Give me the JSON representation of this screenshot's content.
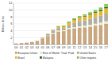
{
  "chart_data": {
    "type": "bar",
    "stacked": true,
    "categories": [
      "00",
      "01",
      "02",
      "03",
      "04",
      "05",
      "06",
      "07",
      "08",
      "09",
      "10",
      "11",
      "12",
      "13",
      "14",
      "15",
      "16",
      "17"
    ],
    "series": [
      {
        "name": "European Union",
        "color": "#c9a882",
        "values": [
          0.3,
          0.4,
          0.5,
          0.7,
          1.0,
          1.8,
          2.5,
          3.0,
          3.8,
          3.9,
          4.5,
          4.7,
          4.9,
          5.0,
          5.2,
          5.5,
          5.7,
          6.0
        ]
      },
      {
        "name": "Rest of World / Trad. Prod.",
        "color": "#eeeac0",
        "values": [
          0.0,
          0.0,
          0.0,
          0.0,
          0.0,
          0.05,
          0.1,
          0.25,
          0.25,
          0.25,
          0.3,
          0.35,
          0.4,
          0.45,
          0.5,
          0.55,
          0.65,
          0.75
        ]
      },
      {
        "name": "United States",
        "color": "#b0b0a8",
        "values": [
          0.0,
          0.0,
          0.05,
          0.05,
          0.1,
          0.15,
          0.45,
          0.85,
          0.75,
          0.5,
          0.75,
          1.25,
          1.5,
          1.6,
          1.75,
          1.9,
          2.0,
          2.25
        ]
      },
      {
        "name": "Brazil",
        "color": "#e8b830",
        "values": [
          0.0,
          0.0,
          0.0,
          0.0,
          0.0,
          0.0,
          0.05,
          0.15,
          0.4,
          0.6,
          0.75,
          0.9,
          1.0,
          1.1,
          1.2,
          1.25,
          1.35,
          1.5
        ]
      },
      {
        "name": "Malaysia",
        "color": "#2d6e50",
        "values": [
          0.0,
          0.0,
          0.0,
          0.0,
          0.0,
          0.0,
          0.0,
          0.0,
          0.05,
          0.05,
          0.1,
          0.15,
          0.15,
          0.2,
          0.25,
          0.25,
          0.3,
          0.35
        ]
      },
      {
        "name": "Other regions",
        "color": "#88c860",
        "values": [
          0.0,
          0.0,
          0.0,
          0.0,
          0.0,
          0.0,
          0.05,
          0.1,
          0.15,
          0.2,
          0.25,
          0.3,
          0.35,
          0.4,
          0.5,
          0.6,
          0.75,
          0.9
        ]
      }
    ],
    "ylabel": "Billion litres",
    "ylim": [
      0,
      12
    ],
    "yticks": [
      2,
      4,
      6,
      8,
      10,
      12
    ],
    "grid": true,
    "legend": "bottom"
  }
}
